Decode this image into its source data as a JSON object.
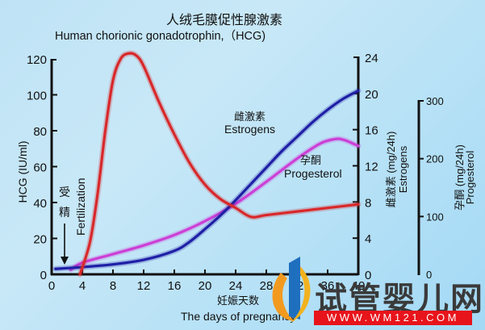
{
  "title": {
    "zh": "人绒毛膜促性腺激素",
    "en": "Human chorionic gonadotrophin,（HCG)"
  },
  "axes": {
    "left": {
      "label": "HCG (IU/ml)",
      "ticks": [
        "0",
        "20",
        "40",
        "60",
        "80",
        "100",
        "120"
      ]
    },
    "right_estrogen": {
      "label_zh": "雌激素 (mg/24h)",
      "label_en": "Estrogens",
      "ticks": [
        "0",
        "4",
        "8",
        "12",
        "16",
        "20",
        "24"
      ]
    },
    "right_progesterol": {
      "label_zh": "孕酮 (mg/24h)",
      "label_en": "Progesterol",
      "ticks": [
        "0",
        "100",
        "200",
        "300"
      ]
    },
    "bottom": {
      "label_zh": "妊娠天数",
      "label_en": "The days of pregnancy",
      "ticks": [
        "0",
        "4",
        "8",
        "12",
        "16",
        "20",
        "24",
        "28",
        "32",
        "36",
        "40"
      ]
    }
  },
  "annotations": {
    "fertilization_zh_1": "受",
    "fertilization_zh_2": "精",
    "fertilization_en": "Fertilization",
    "estrogens_zh": "雌激素",
    "estrogens_en": "Estrogens",
    "progesterol_zh": "孕酮",
    "progesterol_en": "Progesterol"
  },
  "watermark": {
    "text": "试管婴儿网",
    "url": "WWW.WM121.COM"
  },
  "colors": {
    "hcg": "#d8282a",
    "estrogens": "#1f1fa6",
    "progesterol": "#cc3fd6",
    "axis": "#111111",
    "watermark_red": "#e8141b"
  },
  "chart_data": {
    "type": "line",
    "title": "人绒毛膜促性腺激素 Human chorionic gonadotrophin, (HCG)",
    "xlabel": "妊娠天数 The days of pregnancy",
    "xlim": [
      0,
      40
    ],
    "x_ticks": [
      0,
      4,
      8,
      12,
      16,
      20,
      24,
      28,
      32,
      36,
      40
    ],
    "y_axes": [
      {
        "name": "HCG (IU/ml)",
        "side": "left",
        "ylim": [
          0,
          120
        ],
        "ticks": [
          0,
          20,
          40,
          60,
          80,
          100,
          120
        ]
      },
      {
        "name": "雌激素 Estrogens (mg/24h)",
        "side": "right",
        "ylim": [
          0,
          24
        ],
        "ticks": [
          0,
          4,
          8,
          12,
          16,
          20,
          24
        ]
      },
      {
        "name": "孕酮 Progesterol (mg/24h)",
        "side": "far-right",
        "ylim": [
          0,
          300
        ],
        "ticks": [
          0,
          100,
          200,
          300
        ]
      }
    ],
    "series": [
      {
        "name": "HCG",
        "axis": "left",
        "color": "#d8282a",
        "x": [
          3.7,
          5,
          6,
          7,
          8,
          9,
          10,
          11,
          12,
          14,
          16,
          18,
          20,
          22,
          24,
          26,
          28,
          32,
          36,
          40
        ],
        "values": [
          0,
          18,
          45,
          80,
          108,
          120,
          123,
          122,
          116,
          96,
          78,
          62,
          50,
          42,
          37,
          32,
          33,
          35,
          37,
          39
        ]
      },
      {
        "name": "Estrogens",
        "axis": "right_estrogen",
        "color": "#1f1fa6",
        "x": [
          0.5,
          4,
          8,
          12,
          16,
          18,
          20,
          22,
          24,
          26,
          28,
          30,
          32,
          34,
          36,
          38,
          40
        ],
        "values": [
          0.6,
          0.8,
          1.1,
          1.6,
          2.6,
          3.6,
          5.0,
          6.5,
          8.2,
          10.0,
          11.8,
          13.6,
          15.2,
          16.8,
          18.2,
          19.4,
          20.3
        ]
      },
      {
        "name": "Progesterol",
        "axis": "right_progesterol",
        "color": "#cc3fd6",
        "x": [
          2.5,
          4,
          8,
          12,
          16,
          20,
          24,
          28,
          32,
          35,
          37,
          38,
          39,
          40
        ],
        "values": [
          8,
          20,
          35,
          50,
          68,
          92,
          122,
          160,
          200,
          226,
          234,
          233,
          228,
          222
        ]
      }
    ],
    "annotations": [
      {
        "text": "受精 Fertilization",
        "x": 2,
        "arrow": "down"
      },
      {
        "text": "雌激素 Estrogens"
      },
      {
        "text": "孕酮 Progesterol"
      }
    ],
    "grid": false,
    "legend": "inline labels"
  }
}
